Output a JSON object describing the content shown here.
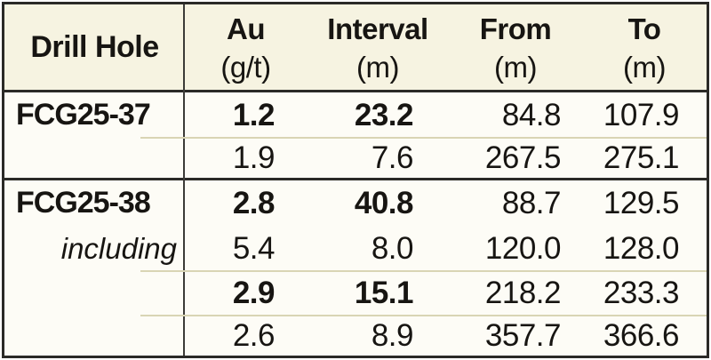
{
  "header": {
    "drill_hole": "Drill Hole",
    "cols": [
      {
        "label": "Au",
        "unit": "(g/t)"
      },
      {
        "label": "Interval",
        "unit": "(m)"
      },
      {
        "label": "From",
        "unit": "(m)"
      },
      {
        "label": "To",
        "unit": "(m)"
      }
    ]
  },
  "rows": [
    {
      "hole": "FCG25-37",
      "au": "1.2",
      "interval": "23.2",
      "from": "84.8",
      "to": "107.9"
    },
    {
      "hole": "",
      "au": "1.9",
      "interval": "7.6",
      "from": "267.5",
      "to": "275.1"
    },
    {
      "hole": "FCG25-38",
      "au": "2.8",
      "interval": "40.8",
      "from": "88.7",
      "to": "129.5"
    },
    {
      "hole": "including",
      "au": "5.4",
      "interval": "8.0",
      "from": "120.0",
      "to": "128.0"
    },
    {
      "hole": "",
      "au": "2.9",
      "interval": "15.1",
      "from": "218.2",
      "to": "233.3"
    },
    {
      "hole": "",
      "au": "2.6",
      "interval": "8.9",
      "from": "357.7",
      "to": "366.6"
    }
  ],
  "colors": {
    "outer_border": "#2b2a27",
    "header_background": "#F6F3E1",
    "body_background": "#FDFCF6",
    "light_divider": "#D9D5B4",
    "column_divider": "#3c3b37",
    "text": "#171512"
  }
}
